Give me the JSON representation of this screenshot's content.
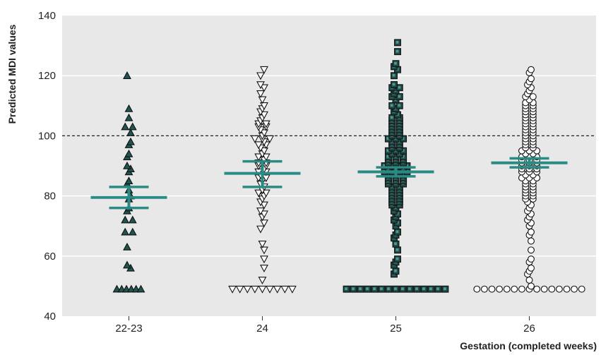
{
  "chart_data": {
    "type": "scatter",
    "xlabel": "Gestation (completed weeks)",
    "ylabel": "Predicted MDI values",
    "ylim": [
      40,
      140
    ],
    "yticks": [
      40,
      60,
      80,
      100,
      120,
      140
    ],
    "categories": [
      "22-23",
      "24",
      "25",
      "26"
    ],
    "reference_line": {
      "y": 100,
      "style": "dashed"
    },
    "grid": "horizontal",
    "series": [
      {
        "category": "22-23",
        "marker": "triangle-up",
        "fill": "#1f5550",
        "mean": 79.5,
        "ci_lower": 76,
        "ci_upper": 83,
        "spread": 0.09,
        "points": [
          120,
          109,
          106,
          103,
          103,
          101,
          98,
          97,
          94,
          93,
          90,
          89,
          88,
          85,
          84,
          82,
          80,
          79,
          76,
          75,
          72,
          72,
          68,
          68,
          63,
          57,
          56,
          49,
          49,
          49,
          49,
          49,
          49
        ]
      },
      {
        "category": "24",
        "marker": "triangle-down",
        "fill": "#ffffff",
        "mean": 87.5,
        "ci_lower": 83,
        "ci_upper": 91.5,
        "spread": 0.24,
        "points": [
          122,
          120,
          117,
          116,
          114,
          112,
          110,
          109,
          108,
          107,
          106,
          105,
          104,
          104,
          103,
          103,
          102,
          101,
          100,
          99,
          99,
          99,
          98,
          97,
          97,
          96,
          95,
          94,
          93,
          93,
          92,
          91,
          91,
          90,
          90,
          89,
          88,
          88,
          87,
          86,
          86,
          85,
          84,
          83,
          82,
          81,
          81,
          80,
          79,
          78,
          77,
          75,
          74,
          73,
          71,
          69,
          64,
          62,
          59,
          56,
          52,
          49,
          49,
          49,
          49,
          49,
          49,
          49,
          49,
          49
        ]
      },
      {
        "category": "25",
        "marker": "square",
        "fill": "#1e4a47",
        "mean": 88,
        "ci_lower": 86.5,
        "ci_upper": 89.5,
        "spread": 0.37,
        "points": [
          131,
          128,
          124,
          123,
          122,
          120,
          117,
          116,
          116,
          115,
          114,
          113,
          113,
          112,
          110,
          110,
          109,
          108,
          107,
          106,
          106,
          105,
          105,
          104,
          104,
          103,
          103,
          102,
          102,
          101,
          101,
          100,
          100,
          99,
          99,
          99,
          98,
          98,
          97,
          97,
          96,
          96,
          95,
          95,
          95,
          94,
          94,
          93,
          93,
          93,
          92,
          92,
          92,
          91,
          91,
          91,
          90,
          90,
          90,
          90,
          89,
          89,
          89,
          88,
          88,
          88,
          88,
          87,
          87,
          87,
          86,
          86,
          86,
          85,
          85,
          85,
          84,
          84,
          84,
          83,
          83,
          82,
          82,
          81,
          81,
          80,
          80,
          79,
          79,
          78,
          78,
          77,
          77,
          76,
          75,
          74,
          73,
          72,
          71,
          70,
          68,
          67,
          66,
          64,
          62,
          59,
          58,
          57,
          55,
          54,
          49,
          49,
          49,
          49,
          49,
          49,
          49,
          49,
          49,
          49,
          49,
          49,
          49,
          49,
          49
        ]
      },
      {
        "category": "26",
        "marker": "circle",
        "fill": "#ffffff",
        "mean": 91,
        "ci_lower": 89.5,
        "ci_upper": 92.5,
        "spread": 0.4,
        "points": [
          122,
          121,
          119,
          118,
          117,
          116,
          115,
          114,
          113,
          113,
          112,
          111,
          111,
          110,
          110,
          109,
          109,
          108,
          108,
          107,
          107,
          106,
          106,
          105,
          105,
          104,
          104,
          103,
          103,
          102,
          102,
          101,
          101,
          100,
          100,
          99,
          99,
          98,
          98,
          97,
          97,
          96,
          96,
          95,
          95,
          95,
          94,
          94,
          93,
          93,
          93,
          92,
          92,
          92,
          91,
          91,
          91,
          90,
          90,
          90,
          89,
          89,
          89,
          88,
          88,
          88,
          87,
          87,
          86,
          86,
          86,
          85,
          85,
          84,
          84,
          83,
          83,
          82,
          82,
          81,
          81,
          80,
          80,
          79,
          79,
          78,
          77,
          76,
          75,
          74,
          73,
          72,
          71,
          70,
          68,
          67,
          65,
          62,
          59,
          58,
          56,
          55,
          54,
          52,
          50,
          49,
          49,
          49,
          49,
          49,
          49,
          49,
          49,
          49,
          49,
          49,
          49,
          49,
          49,
          49
        ]
      }
    ]
  }
}
